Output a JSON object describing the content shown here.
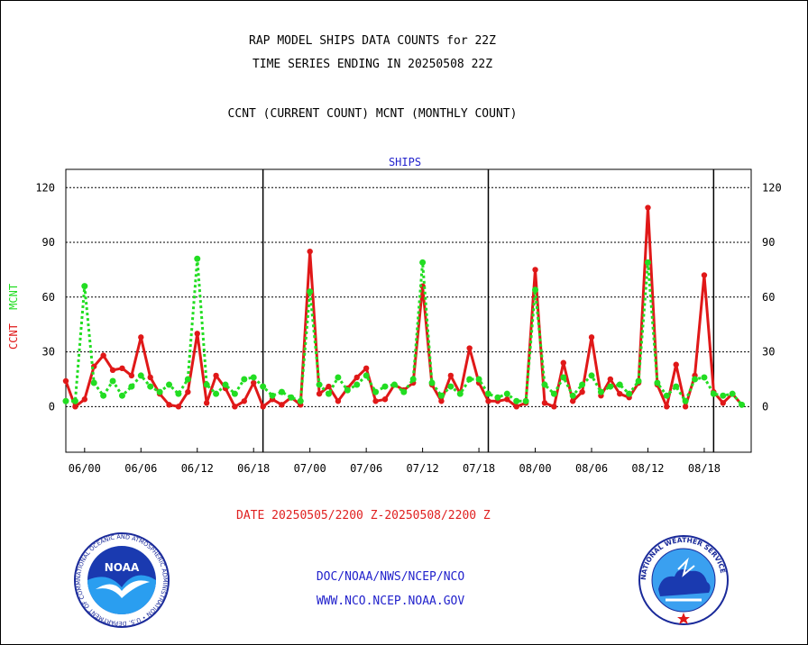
{
  "header": {
    "line1": "RAP MODEL SHIPS DATA COUNTS for 22Z",
    "line2": "TIME SERIES ENDING IN 20250508 22Z",
    "line3": "CCNT (CURRENT COUNT) MCNT (MONTHLY COUNT)"
  },
  "footer": {
    "date_range": "DATE 20250505/2200 Z-20250508/2200 Z",
    "org": "DOC/NOAA/NWS/NCEP/NCO",
    "url": "WWW.NCO.NCEP.NOAA.GOV"
  },
  "logos": {
    "noaa_text": "NOAA",
    "noaa_ring": "NATIONAL OCEANIC AND ATMOSPHERIC ADMINISTRATION • U.S. DEPARTMENT OF COMMERCE",
    "nws_ring": "NATIONAL WEATHER SERVICE"
  },
  "colors": {
    "ccnt": "#e01818",
    "mcnt": "#22dd22",
    "title_blue": "#2222cc"
  },
  "chart_data": {
    "type": "line",
    "title": "SHIPS",
    "ylabel_ccnt": "CCNT",
    "ylabel_mcnt": "MCNT",
    "ylim": [
      -25,
      130
    ],
    "yticks": [
      0,
      30,
      60,
      90,
      120
    ],
    "grid": true,
    "xticks": [
      {
        "label": "06/00",
        "x": 3
      },
      {
        "label": "06/06",
        "x": 9
      },
      {
        "label": "06/12",
        "x": 15
      },
      {
        "label": "06/18",
        "x": 21
      },
      {
        "label": "07/00",
        "x": 27
      },
      {
        "label": "07/06",
        "x": 33
      },
      {
        "label": "07/12",
        "x": 39
      },
      {
        "label": "07/18",
        "x": 45
      },
      {
        "label": "08/00",
        "x": 51
      },
      {
        "label": "08/06",
        "x": 57
      },
      {
        "label": "08/12",
        "x": 63
      },
      {
        "label": "08/18",
        "x": 69
      }
    ],
    "day_boundaries": [
      22,
      46,
      70
    ],
    "xlim": [
      1,
      74
    ],
    "series": [
      {
        "name": "CCNT",
        "values": [
          14,
          0,
          4,
          22,
          28,
          20,
          21,
          17,
          38,
          16,
          7,
          1,
          0,
          8,
          40,
          2,
          17,
          10,
          0,
          3,
          13,
          0,
          4,
          1,
          5,
          1,
          85,
          7,
          11,
          3,
          10,
          16,
          21,
          3,
          4,
          12,
          9,
          13,
          66,
          12,
          3,
          17,
          7,
          32,
          13,
          3,
          3,
          4,
          0,
          2,
          75,
          2,
          0,
          24,
          3,
          8,
          38,
          6,
          15,
          7,
          5,
          13,
          109,
          12,
          0,
          23,
          0,
          17,
          72,
          8,
          2,
          7,
          1
        ]
      },
      {
        "name": "MCNT",
        "values": [
          3,
          3,
          66,
          13,
          6,
          14,
          6,
          11,
          17,
          11,
          8,
          12,
          7,
          15,
          81,
          12,
          7,
          12,
          7,
          15,
          16,
          11,
          6,
          8,
          5,
          3,
          63,
          12,
          7,
          16,
          9,
          12,
          17,
          8,
          11,
          12,
          8,
          15,
          79,
          13,
          6,
          11,
          7,
          15,
          15,
          7,
          5,
          7,
          3,
          3,
          64,
          12,
          7,
          16,
          6,
          12,
          17,
          8,
          11,
          12,
          7,
          14,
          79,
          13,
          6,
          11,
          3,
          15,
          16,
          7,
          6,
          7,
          1
        ]
      }
    ]
  }
}
